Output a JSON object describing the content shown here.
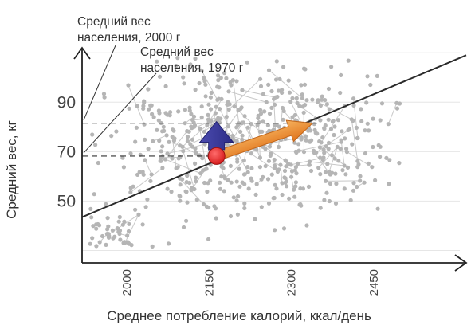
{
  "chart_data": {
    "type": "scatter",
    "title": "",
    "xlabel": "Среднее потребление калорий, ккал/день",
    "ylabel": "Средний вес, кг",
    "xlim": [
      1920,
      2620
    ],
    "ylim": [
      25,
      112
    ],
    "x_ticks": [
      "2000",
      "2150",
      "2300",
      "2450"
    ],
    "y_ticks": [
      "90",
      "70",
      "50"
    ],
    "grid": true,
    "annotations": [
      {
        "lines": [
          "Средний вес",
          "населения, 2000 г"
        ],
        "x": 2340,
        "y": 81.5
      },
      {
        "lines": [
          "Средний вес",
          "населения, 1970 г"
        ],
        "x": 2165,
        "y": 68.2
      }
    ],
    "trend_line": {
      "x": [
        1920,
        2620
      ],
      "y": [
        43.5,
        109
      ]
    },
    "point_1970": {
      "x": 2165,
      "y": 68.2
    },
    "point_2000": {
      "x": 2340,
      "y": 81.5
    },
    "colors": {
      "points": "#b5b5b5",
      "connector": "#c8c8c8",
      "trend": "#2b2b2b",
      "up_arrow": "#3a3a96",
      "diag_arrow": "#f08a2a",
      "marker": "#e02424"
    },
    "cluster_seed": 20240517
  }
}
